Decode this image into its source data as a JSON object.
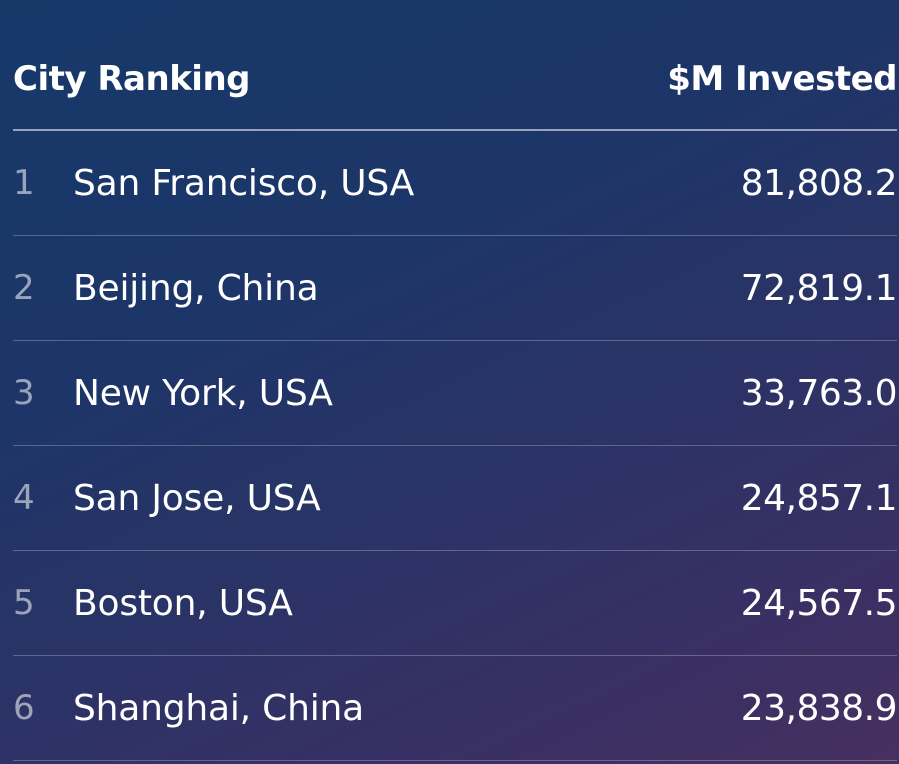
{
  "table": {
    "header": {
      "city": "City Ranking",
      "value": "$M Invested"
    },
    "rows": [
      {
        "rank": "1",
        "city": "San Francisco, USA",
        "value": "81,808.2"
      },
      {
        "rank": "2",
        "city": "Beijing, China",
        "value": "72,819.1"
      },
      {
        "rank": "3",
        "city": "New York, USA",
        "value": "33,763.0"
      },
      {
        "rank": "4",
        "city": "San Jose, USA",
        "value": "24,857.1"
      },
      {
        "rank": "5",
        "city": "Boston, USA",
        "value": "24,567.5"
      },
      {
        "rank": "6",
        "city": "Shanghai, China",
        "value": "23,838.9"
      }
    ]
  },
  "colors": {
    "background_start": "#16396a",
    "background_end": "#46305f",
    "text": "#ffffff"
  }
}
